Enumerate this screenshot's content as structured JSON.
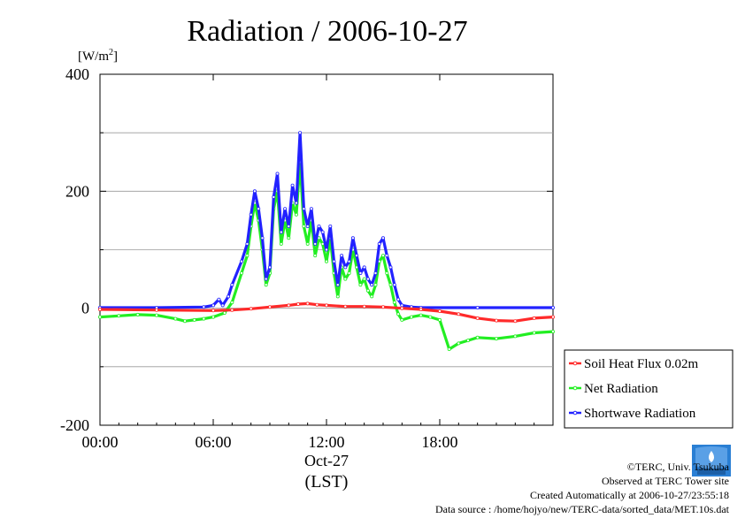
{
  "chart_data": {
    "type": "line",
    "title": "Radiation / 2006-10-27",
    "ylabel": "[W/m²]",
    "ylabel_main": "[W/m",
    "ylabel_sup": "2",
    "ylabel_close": "]",
    "xlabel": "(LST)",
    "date_label": "Oct-27",
    "xlim": [
      0,
      24
    ],
    "ylim": [
      -200,
      400
    ],
    "y_ticks": [
      -200,
      0,
      200,
      400
    ],
    "y_tick_labels": [
      "-200",
      "0",
      "200",
      "400"
    ],
    "x_ticks": [
      0,
      6,
      12,
      18
    ],
    "x_tick_labels": [
      "00:00",
      "06:00",
      "12:00",
      "18:00"
    ],
    "grid": true,
    "legend_position": "right",
    "series": [
      {
        "name": "Soil Heat Flux 0.02m",
        "color": "#ff2a2a",
        "points": [
          [
            0,
            -2
          ],
          [
            3,
            -3
          ],
          [
            6,
            -4
          ],
          [
            7,
            -3
          ],
          [
            8,
            -1
          ],
          [
            9,
            2
          ],
          [
            10,
            5
          ],
          [
            10.5,
            7
          ],
          [
            11,
            8
          ],
          [
            11.5,
            6
          ],
          [
            12,
            5
          ],
          [
            13,
            3
          ],
          [
            14,
            3
          ],
          [
            15,
            2
          ],
          [
            16,
            0
          ],
          [
            17,
            -2
          ],
          [
            18,
            -5
          ],
          [
            19,
            -10
          ],
          [
            20,
            -17
          ],
          [
            21,
            -21
          ],
          [
            22,
            -22
          ],
          [
            23,
            -17
          ],
          [
            24,
            -15
          ]
        ]
      },
      {
        "name": "Net Radiation",
        "color": "#22ee22",
        "points": [
          [
            0,
            -15
          ],
          [
            1,
            -13
          ],
          [
            2,
            -11
          ],
          [
            3,
            -12
          ],
          [
            4,
            -18
          ],
          [
            4.5,
            -22
          ],
          [
            5,
            -20
          ],
          [
            5.5,
            -18
          ],
          [
            6,
            -15
          ],
          [
            6.6,
            -8
          ],
          [
            7,
            10
          ],
          [
            7.5,
            60
          ],
          [
            7.8,
            90
          ],
          [
            8,
            140
          ],
          [
            8.2,
            180
          ],
          [
            8.4,
            150
          ],
          [
            8.6,
            100
          ],
          [
            8.8,
            40
          ],
          [
            9,
            60
          ],
          [
            9.2,
            170
          ],
          [
            9.4,
            200
          ],
          [
            9.6,
            110
          ],
          [
            9.8,
            150
          ],
          [
            10,
            120
          ],
          [
            10.2,
            180
          ],
          [
            10.4,
            160
          ],
          [
            10.6,
            250
          ],
          [
            10.8,
            140
          ],
          [
            11,
            110
          ],
          [
            11.2,
            150
          ],
          [
            11.4,
            90
          ],
          [
            11.6,
            120
          ],
          [
            11.8,
            110
          ],
          [
            12,
            80
          ],
          [
            12.2,
            120
          ],
          [
            12.4,
            60
          ],
          [
            12.6,
            20
          ],
          [
            12.8,
            70
          ],
          [
            13,
            50
          ],
          [
            13.2,
            60
          ],
          [
            13.4,
            100
          ],
          [
            13.6,
            70
          ],
          [
            13.8,
            40
          ],
          [
            14,
            50
          ],
          [
            14.2,
            30
          ],
          [
            14.4,
            20
          ],
          [
            14.6,
            40
          ],
          [
            14.8,
            80
          ],
          [
            15,
            90
          ],
          [
            15.2,
            60
          ],
          [
            15.4,
            40
          ],
          [
            15.6,
            10
          ],
          [
            15.8,
            -10
          ],
          [
            16,
            -20
          ],
          [
            16.5,
            -15
          ],
          [
            17,
            -12
          ],
          [
            17.5,
            -15
          ],
          [
            18,
            -20
          ],
          [
            18.5,
            -70
          ],
          [
            19,
            -60
          ],
          [
            19.5,
            -55
          ],
          [
            20,
            -50
          ],
          [
            21,
            -52
          ],
          [
            22,
            -48
          ],
          [
            23,
            -42
          ],
          [
            24,
            -40
          ]
        ]
      },
      {
        "name": "Shortwave Radiation",
        "color": "#2222ff",
        "points": [
          [
            0,
            1
          ],
          [
            3,
            1
          ],
          [
            5.5,
            2
          ],
          [
            6,
            5
          ],
          [
            6.3,
            15
          ],
          [
            6.5,
            5
          ],
          [
            6.8,
            20
          ],
          [
            7,
            40
          ],
          [
            7.5,
            80
          ],
          [
            7.8,
            110
          ],
          [
            8,
            160
          ],
          [
            8.2,
            200
          ],
          [
            8.4,
            170
          ],
          [
            8.6,
            120
          ],
          [
            8.8,
            50
          ],
          [
            9,
            70
          ],
          [
            9.2,
            190
          ],
          [
            9.4,
            230
          ],
          [
            9.6,
            130
          ],
          [
            9.8,
            170
          ],
          [
            10,
            140
          ],
          [
            10.2,
            210
          ],
          [
            10.4,
            180
          ],
          [
            10.6,
            300
          ],
          [
            10.8,
            170
          ],
          [
            11,
            140
          ],
          [
            11.2,
            170
          ],
          [
            11.4,
            110
          ],
          [
            11.6,
            140
          ],
          [
            11.8,
            130
          ],
          [
            12,
            100
          ],
          [
            12.2,
            140
          ],
          [
            12.4,
            80
          ],
          [
            12.6,
            40
          ],
          [
            12.8,
            90
          ],
          [
            13,
            70
          ],
          [
            13.2,
            80
          ],
          [
            13.4,
            120
          ],
          [
            13.6,
            90
          ],
          [
            13.8,
            60
          ],
          [
            14,
            70
          ],
          [
            14.2,
            50
          ],
          [
            14.4,
            40
          ],
          [
            14.6,
            60
          ],
          [
            14.8,
            110
          ],
          [
            15,
            120
          ],
          [
            15.2,
            90
          ],
          [
            15.4,
            70
          ],
          [
            15.6,
            40
          ],
          [
            15.8,
            15
          ],
          [
            16,
            5
          ],
          [
            16.5,
            2
          ],
          [
            17,
            1
          ],
          [
            20,
            1
          ],
          [
            24,
            1
          ]
        ]
      }
    ]
  },
  "credits": {
    "copyright": "©TERC, Univ. Tsukuba",
    "observed": "Observed at TERC Tower site",
    "created": "Created Automatically at 2006-10-27/23:55:18",
    "source": "Data source : /home/hojyo/new/TERC-data/sorted_data/MET.10s.dat"
  },
  "logo": {
    "text": "TERC",
    "color": "#2a7fd4"
  }
}
